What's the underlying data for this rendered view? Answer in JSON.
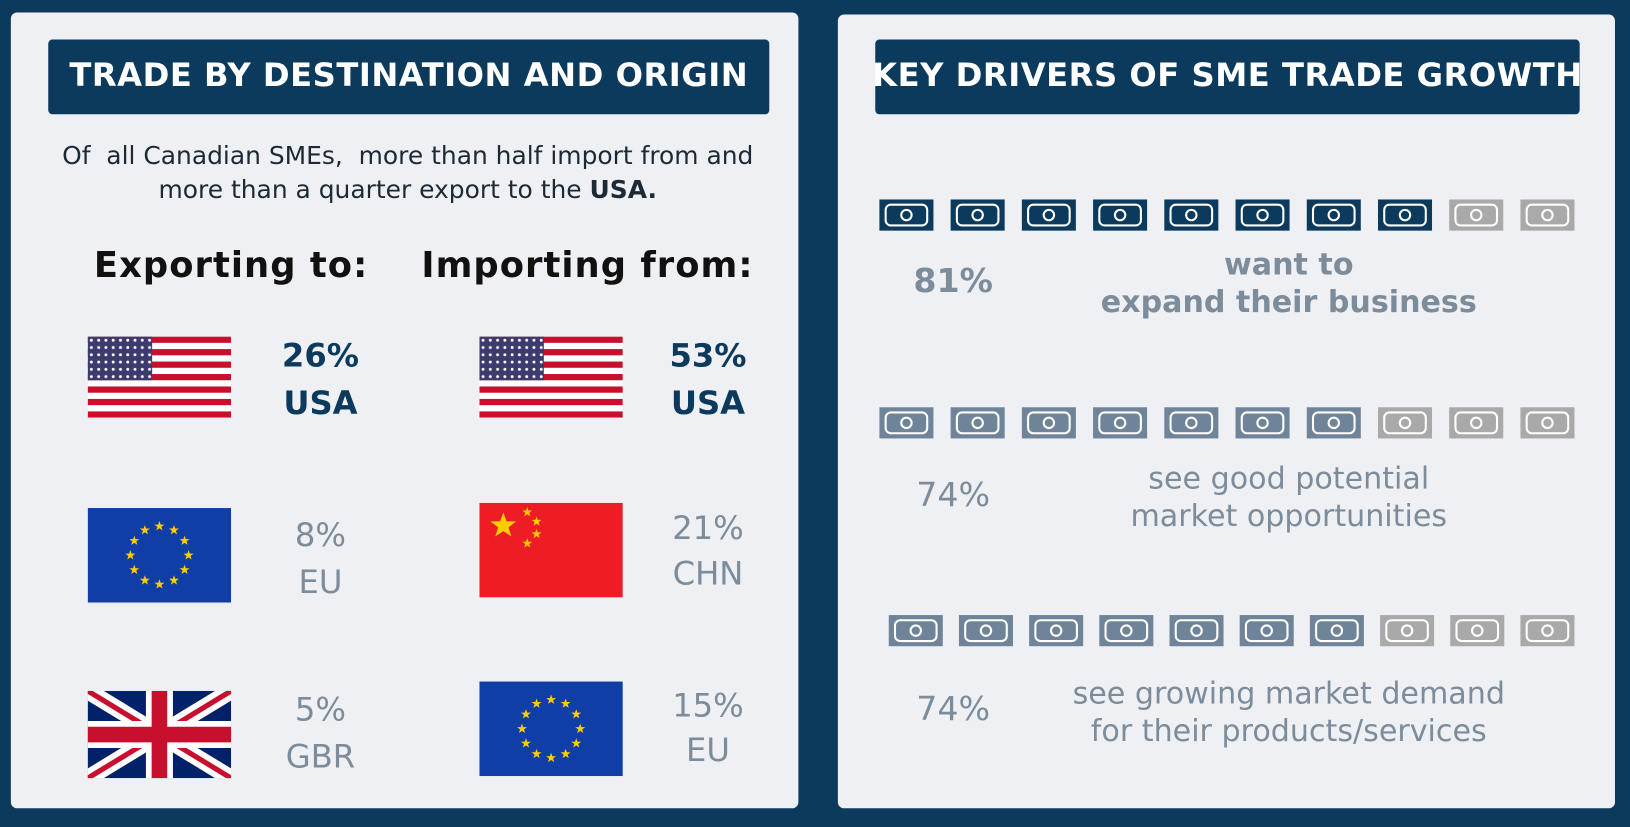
{
  "left_panel": {
    "title": "TRADE BY DESTINATION AND ORIGIN",
    "intro": {
      "lines": [
        "Of  all Canadian SMEs,  more than half import from and",
        "more than a quarter export to the "
      ],
      "emphasis": "USA."
    },
    "exporting": {
      "heading": "Exporting to:",
      "items": [
        {
          "percent": "26%",
          "country": "USA",
          "highlight": true
        },
        {
          "percent": "8%",
          "country": "EU",
          "highlight": false
        },
        {
          "percent": "5%",
          "country": "GBR",
          "highlight": false
        }
      ]
    },
    "importing": {
      "heading": "Importing from:",
      "items": [
        {
          "percent": "53%",
          "country": "USA",
          "highlight": true
        },
        {
          "percent": "21%",
          "country": "CHN",
          "highlight": false
        },
        {
          "percent": "15%",
          "country": "EU",
          "highlight": false
        }
      ]
    }
  },
  "right_panel": {
    "title": "KEY DRIVERS OF SME TRADE GROWTH",
    "drivers": [
      {
        "percent": "81%",
        "text": [
          "want to",
          "expand their business"
        ],
        "icons_filled": 8,
        "icons_total": 10,
        "highlight": true
      },
      {
        "percent": "74%",
        "text": [
          "see good potential",
          "market opportunities"
        ],
        "icons_filled": 7,
        "icons_total": 10,
        "highlight": false
      },
      {
        "percent": "74%",
        "text": [
          "see growing market demand",
          "for their products/services"
        ],
        "icons_filled": 7,
        "icons_total": 10,
        "highlight": false
      }
    ]
  }
}
